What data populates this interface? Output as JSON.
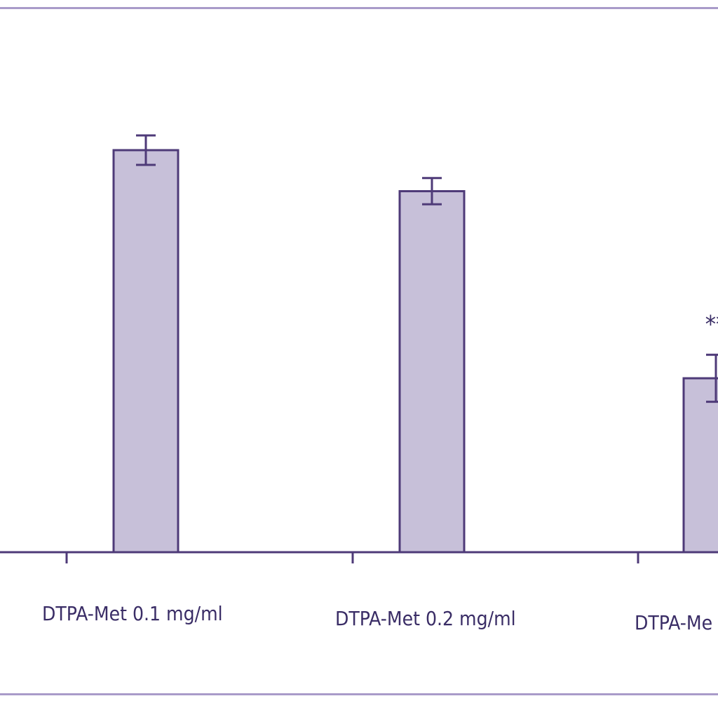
{
  "chart_data": {
    "type": "bar",
    "title": "",
    "xlabel": "",
    "ylabel": "",
    "categories": [
      "DTPA-Met 0.1 mg/ml",
      "DTPA-Met 0.2  mg/ml",
      "DTPA-Me"
    ],
    "values": [
      73.5,
      66.0,
      31.8
    ],
    "errors": [
      2.7,
      2.4,
      4.3
    ],
    "annotations": [
      "",
      "",
      "**"
    ],
    "ylim": [
      0,
      100
    ],
    "grid": false,
    "legend": "none",
    "colors": {
      "bar_fill": "#c7c0d9",
      "bar_stroke": "#4e3a78",
      "axis": "#4e3a78",
      "frame": "#a99bc9",
      "text": "#3a2d66"
    }
  }
}
